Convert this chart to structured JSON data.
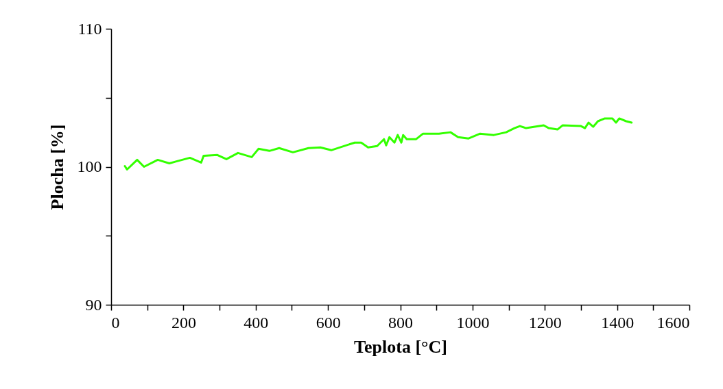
{
  "chart_data": {
    "type": "line",
    "xlabel": "Teplota [°C]",
    "ylabel": "Plocha [%]",
    "xlim": [
      0,
      1600
    ],
    "ylim": [
      90,
      110
    ],
    "xticks": [
      0,
      {
        "value": 100,
        "label": null
      },
      200,
      {
        "value": 300,
        "label": null
      },
      400,
      {
        "value": 500,
        "label": null
      },
      600,
      {
        "value": 700,
        "label": null
      },
      800,
      {
        "value": 900,
        "label": null
      },
      1000,
      {
        "value": 1100,
        "label": null
      },
      1200,
      {
        "value": 1300,
        "label": null
      },
      1400,
      {
        "value": 1500,
        "label": null
      },
      1600
    ],
    "yticks": [
      90,
      {
        "value": 95,
        "label": null
      },
      100,
      {
        "value": 105,
        "label": null
      },
      110
    ],
    "grid": false,
    "marker": "none",
    "line_style": "solid",
    "x": [
      38,
      44,
      72,
      91,
      129,
      161,
      218,
      249,
      256,
      294,
      319,
      351,
      389,
      408,
      438,
      465,
      503,
      546,
      579,
      609,
      674,
      692,
      711,
      736,
      755,
      761,
      770,
      784,
      793,
      803,
      808,
      818,
      844,
      863,
      907,
      939,
      960,
      989,
      1021,
      1059,
      1093,
      1116,
      1131,
      1148,
      1197,
      1211,
      1235,
      1249,
      1300,
      1311,
      1321,
      1334,
      1347,
      1366,
      1387,
      1397,
      1406,
      1425,
      1440
    ],
    "series": [
      {
        "color": "#33ff00",
        "values": [
          100.05,
          99.8,
          100.5,
          100.0,
          100.5,
          100.25,
          100.65,
          100.3,
          100.8,
          100.85,
          100.55,
          101.0,
          100.7,
          101.3,
          101.15,
          101.35,
          101.05,
          101.35,
          101.4,
          101.2,
          101.75,
          101.75,
          101.4,
          101.5,
          102.0,
          101.55,
          102.15,
          101.75,
          102.3,
          101.75,
          102.3,
          102.0,
          102.0,
          102.4,
          102.4,
          102.5,
          102.15,
          102.05,
          102.4,
          102.3,
          102.5,
          102.8,
          102.95,
          102.8,
          103.0,
          102.8,
          102.7,
          103.0,
          102.95,
          102.8,
          103.2,
          102.9,
          103.3,
          103.5,
          103.5,
          103.2,
          103.5,
          103.3,
          103.2
        ]
      }
    ]
  }
}
